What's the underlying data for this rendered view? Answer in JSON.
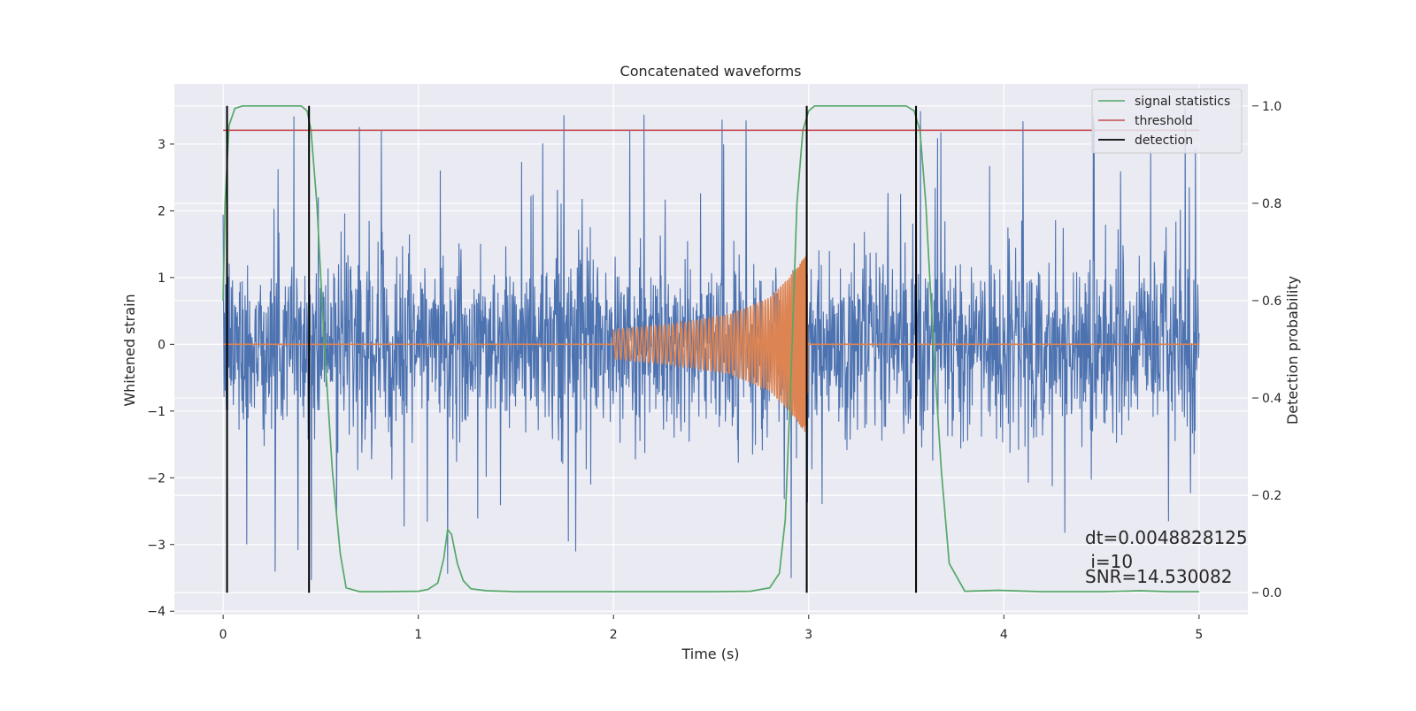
{
  "chart_data": {
    "type": "line",
    "title": "Concatenated waveforms",
    "xlabel": "Time (s)",
    "ylabel": "Whitened strain",
    "y2label": "Detection probability",
    "xlim": [
      -0.25,
      5.25
    ],
    "ylim": [
      -4.05,
      3.9
    ],
    "y2lim": [
      -0.045,
      1.045
    ],
    "x_ticks": [
      0,
      1,
      2,
      3,
      4,
      5
    ],
    "y_ticks": [
      -4,
      -3,
      -2,
      -1,
      0,
      1,
      2,
      3
    ],
    "y2_ticks": [
      0.0,
      0.2,
      0.4,
      0.6,
      0.8,
      1.0
    ],
    "x_tick_labels": [
      "0",
      "1",
      "2",
      "3",
      "4",
      "5"
    ],
    "y_tick_labels": [
      "−4",
      "−3",
      "−2",
      "−1",
      "0",
      "1",
      "2",
      "3"
    ],
    "y2_tick_labels": [
      "0.0",
      "0.2",
      "0.4",
      "0.6",
      "0.8",
      "1.0"
    ],
    "grid": true,
    "legend_position": "top-right",
    "series": [
      {
        "name": "",
        "role": "whitened strain noise",
        "axis": "left",
        "color": "#4c72b0",
        "x_range": [
          0,
          5
        ],
        "typical_amplitude": 0.7,
        "peak_amplitude": 3.55
      },
      {
        "name": "",
        "role": "injected chirp waveform",
        "axis": "left",
        "color": "#dd8452",
        "x": [
          0,
          2.0,
          2.0,
          2.3,
          2.6,
          2.8,
          2.9,
          2.95,
          2.99,
          3.0,
          5.0
        ],
        "y_envelope": [
          0,
          0,
          0.22,
          0.3,
          0.45,
          0.7,
          1.0,
          1.2,
          1.35,
          0,
          0
        ]
      },
      {
        "name": "signal statistics",
        "axis": "right",
        "color": "#55a868",
        "x": [
          0.0,
          0.01,
          0.03,
          0.06,
          0.1,
          0.2,
          0.3,
          0.4,
          0.43,
          0.45,
          0.48,
          0.52,
          0.56,
          0.6,
          0.63,
          0.7,
          0.8,
          1.0,
          1.05,
          1.1,
          1.13,
          1.15,
          1.17,
          1.2,
          1.23,
          1.27,
          1.35,
          1.5,
          2.0,
          2.5,
          2.7,
          2.8,
          2.85,
          2.88,
          2.91,
          2.94,
          2.97,
          3.0,
          3.03,
          3.1,
          3.3,
          3.5,
          3.54,
          3.57,
          3.6,
          3.64,
          3.68,
          3.72,
          3.8,
          3.97,
          4.2,
          4.5,
          4.7,
          4.85,
          5.0
        ],
        "y": [
          0.6,
          0.8,
          0.96,
          0.995,
          1.0,
          1.0,
          1.0,
          1.0,
          0.99,
          0.95,
          0.8,
          0.5,
          0.25,
          0.08,
          0.01,
          0.002,
          0.002,
          0.003,
          0.007,
          0.02,
          0.07,
          0.13,
          0.12,
          0.06,
          0.025,
          0.008,
          0.004,
          0.002,
          0.002,
          0.002,
          0.003,
          0.01,
          0.04,
          0.15,
          0.45,
          0.8,
          0.95,
          0.99,
          1.0,
          1.0,
          1.0,
          1.0,
          0.99,
          0.95,
          0.8,
          0.5,
          0.25,
          0.06,
          0.003,
          0.005,
          0.002,
          0.002,
          0.004,
          0.002,
          0.002
        ]
      },
      {
        "name": "threshold",
        "axis": "right",
        "color": "#c44e52",
        "x": [
          0,
          5
        ],
        "y": [
          0.95,
          0.95
        ]
      },
      {
        "name": "detection",
        "axis": "right",
        "color": "#000000",
        "type": "vlines",
        "x": [
          0.02,
          0.44,
          2.99,
          3.55
        ],
        "y_range": [
          0.0,
          1.0
        ]
      }
    ],
    "annotations": {
      "dt": "dt=0.0048828125",
      "i": " i=10",
      "snr": "SNR=14.530082"
    }
  }
}
